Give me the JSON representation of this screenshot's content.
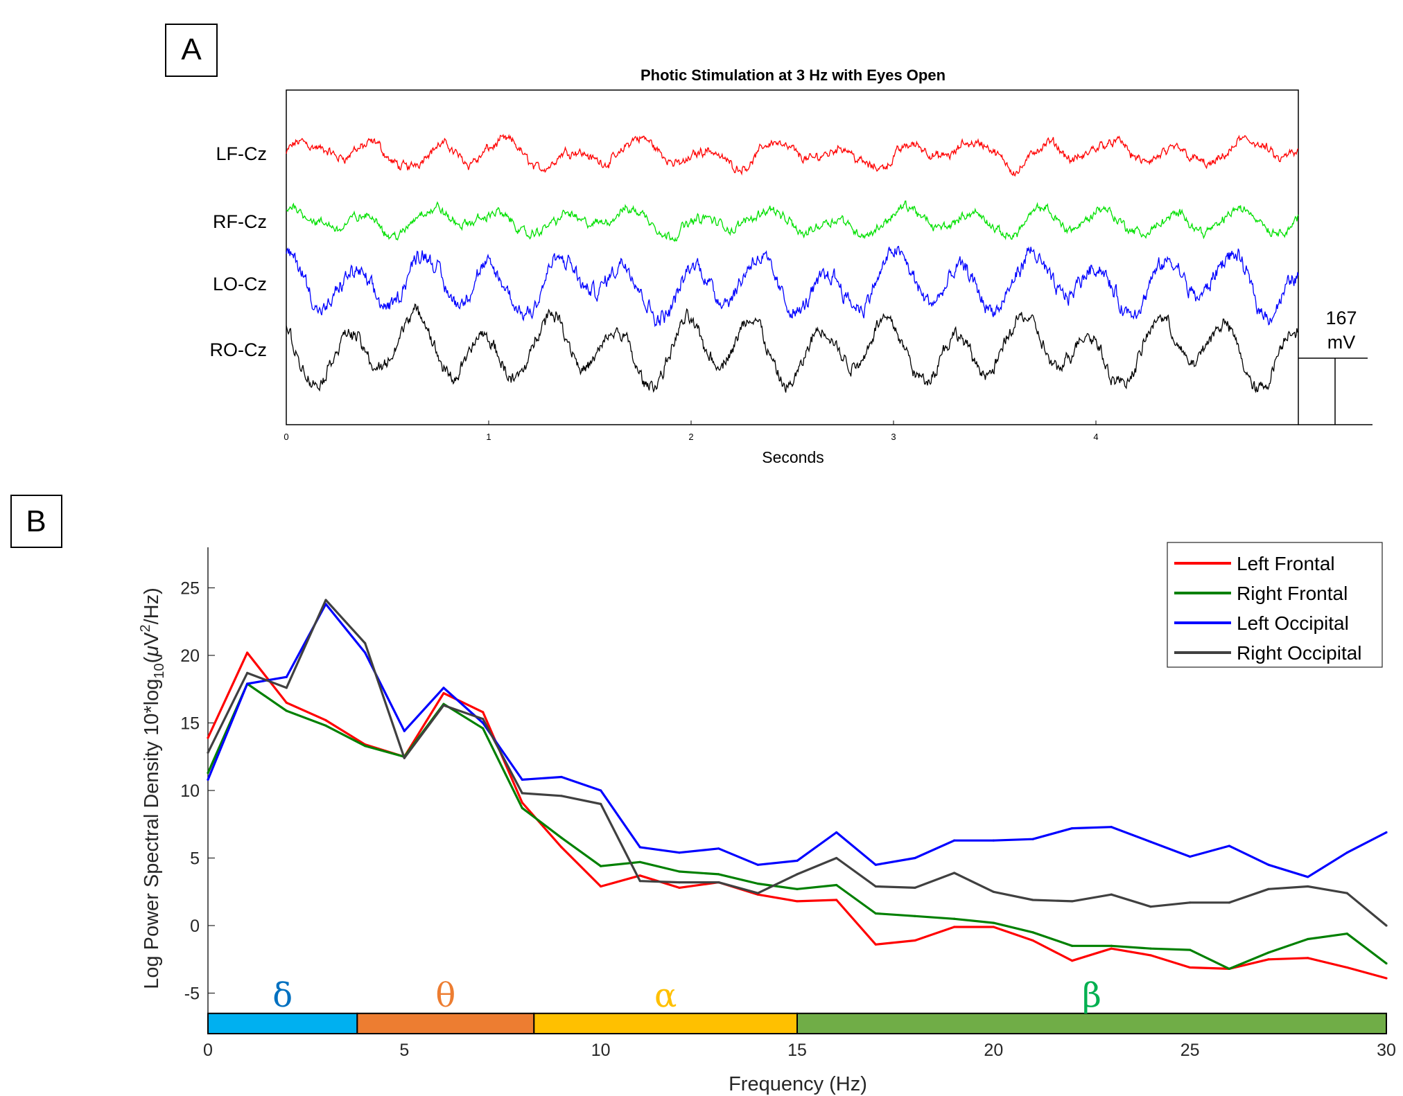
{
  "panel_a": {
    "label": "A",
    "chart_data": {
      "type": "line",
      "title": "Photic Stimulation at 3 Hz with Eyes Open",
      "xlabel": "Seconds",
      "xlim": [
        0,
        5
      ],
      "x_ticks": [
        "0",
        "1",
        "2",
        "3",
        "4"
      ],
      "scale_bar_value": "167",
      "scale_bar_unit": "mV",
      "stimulus_hz": 3,
      "series": [
        {
          "name": "LF-Cz",
          "color": "#ff0000",
          "amplitude": 1.0,
          "noise": 0.6
        },
        {
          "name": "RF-Cz",
          "color": "#00e000",
          "amplitude": 1.0,
          "noise": 0.6
        },
        {
          "name": "LO-Cz",
          "color": "#0000ff",
          "amplitude": 2.2,
          "noise": 1.2
        },
        {
          "name": "RO-Cz",
          "color": "#000000",
          "amplitude": 2.6,
          "noise": 1.0
        }
      ]
    }
  },
  "panel_b": {
    "label": "B",
    "chart_data": {
      "type": "line",
      "xlabel": "Frequency (Hz)",
      "ylabel_parts": {
        "main": "Log Power Spectral Density 10*log",
        "sub": "10",
        "open": "(",
        "mu": "μ",
        "unit_v": "V",
        "sup": "2",
        "tail": "/Hz)"
      },
      "xlim": [
        0,
        30
      ],
      "ylim": [
        -8,
        28
      ],
      "x_ticks": [
        0,
        5,
        10,
        15,
        20,
        25,
        30
      ],
      "y_ticks": [
        -5,
        0,
        5,
        10,
        15,
        20,
        25
      ],
      "x": [
        0,
        1,
        2,
        3,
        4,
        5,
        6,
        7,
        8,
        9,
        10,
        11,
        12,
        13,
        14,
        15,
        16,
        17,
        18,
        19,
        20,
        21,
        22,
        23,
        24,
        25,
        26,
        27,
        28,
        29,
        30
      ],
      "series": [
        {
          "name": "Left Frontal",
          "color": "#ff0000",
          "values": [
            13.9,
            20.2,
            16.5,
            15.2,
            13.4,
            12.5,
            17.2,
            15.8,
            9.1,
            5.8,
            2.9,
            3.7,
            2.8,
            3.2,
            2.3,
            1.8,
            1.9,
            -1.4,
            -1.1,
            -0.1,
            -0.1,
            -1.1,
            -2.6,
            -1.7,
            -2.2,
            -3.1,
            -3.2,
            -2.5,
            -2.4,
            -3.1,
            -3.9
          ]
        },
        {
          "name": "Right Frontal",
          "color": "#008000",
          "values": [
            11.3,
            17.9,
            15.9,
            14.8,
            13.3,
            12.5,
            16.4,
            14.6,
            8.7,
            6.5,
            4.4,
            4.7,
            4.0,
            3.8,
            3.1,
            2.7,
            3.0,
            0.9,
            0.7,
            0.5,
            0.2,
            -0.5,
            -1.5,
            -1.5,
            -1.7,
            -1.8,
            -3.2,
            -2.0,
            -1.0,
            -0.6,
            -2.8
          ]
        },
        {
          "name": "Left Occipital",
          "color": "#0000ff",
          "values": [
            10.8,
            17.9,
            18.4,
            23.8,
            20.2,
            14.4,
            17.6,
            15.0,
            10.8,
            11.0,
            10.0,
            5.8,
            5.4,
            5.7,
            4.5,
            4.8,
            6.9,
            4.5,
            5.0,
            6.3,
            6.3,
            6.4,
            7.2,
            7.3,
            6.2,
            5.1,
            5.9,
            4.5,
            3.6,
            5.4,
            6.9
          ]
        },
        {
          "name": "Right Occipital",
          "color": "#404040",
          "values": [
            12.8,
            18.7,
            17.6,
            24.1,
            20.9,
            12.4,
            16.3,
            15.3,
            9.8,
            9.6,
            9.0,
            3.3,
            3.2,
            3.2,
            2.4,
            3.8,
            5.0,
            2.9,
            2.8,
            3.9,
            2.5,
            1.9,
            1.8,
            2.3,
            1.4,
            1.7,
            1.7,
            2.7,
            2.9,
            2.4,
            0.0
          ]
        }
      ],
      "bands": [
        {
          "symbol": "δ",
          "from": 0,
          "to": 3.8,
          "color": "#00b0f0",
          "text_color": "#0070c0"
        },
        {
          "symbol": "θ",
          "from": 3.8,
          "to": 8.3,
          "color": "#ed7d31",
          "text_color": "#ed7d31"
        },
        {
          "symbol": "α",
          "from": 8.3,
          "to": 15,
          "color": "#ffc000",
          "text_color": "#ffc000"
        },
        {
          "symbol": "β",
          "from": 15,
          "to": 30,
          "color": "#70ad47",
          "text_color": "#00b050"
        }
      ],
      "legend_position": "top-right"
    }
  }
}
